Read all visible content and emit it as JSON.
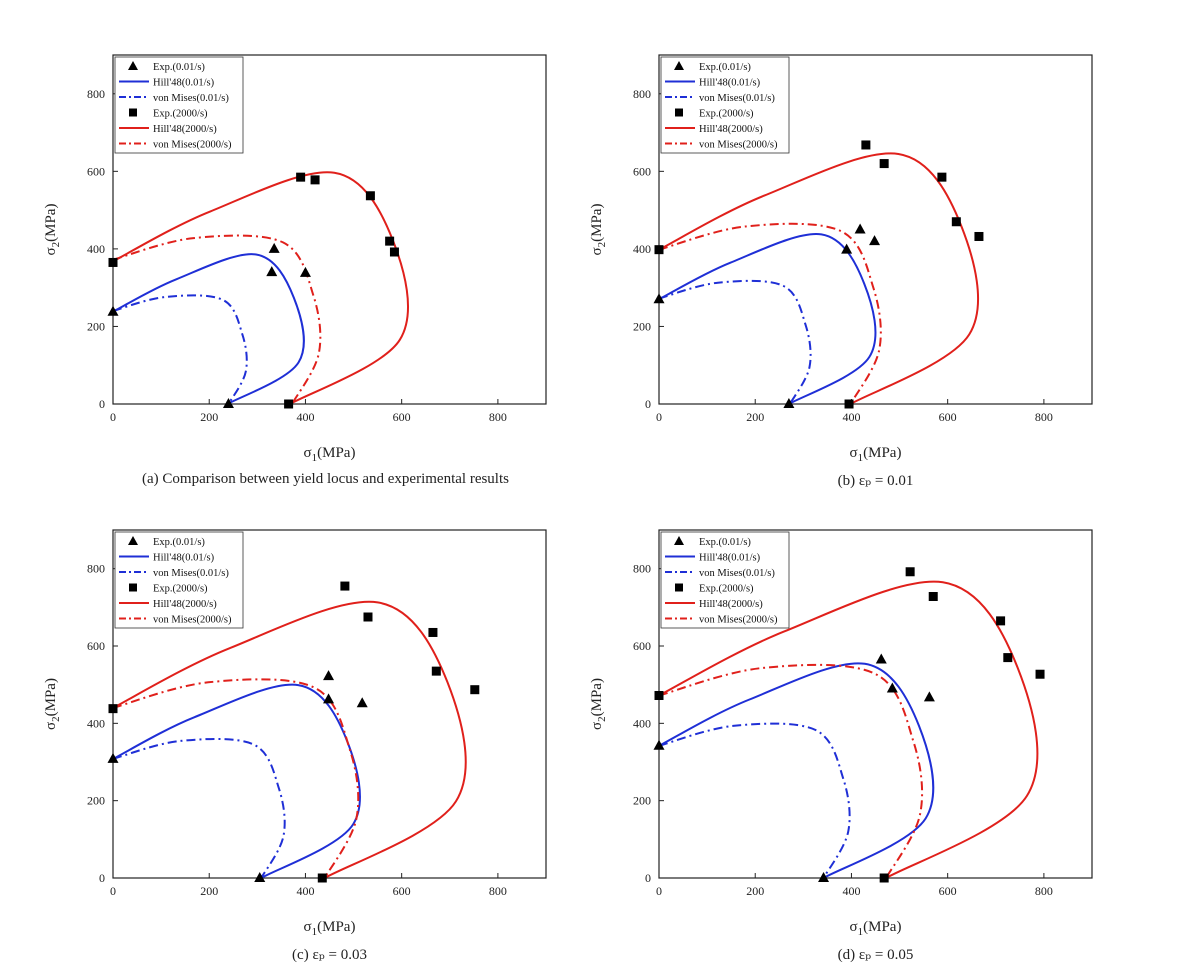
{
  "figure": {
    "legend_entries": [
      {
        "label": "Exp.(0.01/s)",
        "kind": "triangle",
        "color": "#000000"
      },
      {
        "label": "Hill'48(0.01/s)",
        "kind": "solid",
        "color": "#1f2fd6"
      },
      {
        "label": "von Mises(0.01/s)",
        "kind": "dashdot",
        "color": "#1f2fd6"
      },
      {
        "label": "Exp.(2000/s)",
        "kind": "square",
        "color": "#000000"
      },
      {
        "label": "Hill'48(2000/s)",
        "kind": "solid",
        "color": "#e0201b"
      },
      {
        "label": "von Mises(2000/s)",
        "kind": "dashdot",
        "color": "#e0201b"
      }
    ],
    "colors": {
      "blue": "#1f2fd6",
      "red": "#e0201b",
      "marker": "#000000"
    }
  },
  "chart_data": [
    {
      "id": "a",
      "type": "scatter",
      "caption": "(a) Comparison between yield locus and experimental results",
      "xlabel": "σ1(MPa)",
      "ylabel": "σ2(MPa)",
      "xlim": [
        0,
        900
      ],
      "ylim": [
        0,
        900
      ],
      "xticks": [
        0,
        200,
        400,
        600,
        800
      ],
      "yticks": [
        0,
        200,
        400,
        600,
        800
      ],
      "legend_position": "top-left",
      "curves": {
        "hill_low": 238,
        "vm_low": 240,
        "hill_high": 368,
        "vm_high": 372
      },
      "exp_low": [
        [
          0,
          238
        ],
        [
          240,
          0
        ],
        [
          330,
          340
        ],
        [
          335,
          400
        ],
        [
          400,
          338
        ]
      ],
      "exp_high": [
        [
          0,
          365
        ],
        [
          365,
          0
        ],
        [
          390,
          585
        ],
        [
          420,
          578
        ],
        [
          535,
          537
        ],
        [
          575,
          420
        ],
        [
          585,
          392
        ]
      ]
    },
    {
      "id": "b",
      "type": "scatter",
      "caption": "(b) εₚ = 0.01",
      "xlabel": "σ1(MPa)",
      "ylabel": "σ2(MPa)",
      "xlim": [
        0,
        900
      ],
      "ylim": [
        0,
        900
      ],
      "xticks": [
        0,
        200,
        400,
        600,
        800
      ],
      "yticks": [
        0,
        200,
        400,
        600,
        800
      ],
      "legend_position": "top-left",
      "curves": {
        "hill_low": 270,
        "vm_low": 272,
        "hill_high": 398,
        "vm_high": 398
      },
      "exp_low": [
        [
          0,
          270
        ],
        [
          270,
          0
        ],
        [
          390,
          398
        ],
        [
          418,
          450
        ],
        [
          448,
          420
        ]
      ],
      "exp_high": [
        [
          0,
          398
        ],
        [
          395,
          0
        ],
        [
          430,
          668
        ],
        [
          468,
          620
        ],
        [
          588,
          585
        ],
        [
          618,
          470
        ],
        [
          665,
          432
        ]
      ]
    },
    {
      "id": "c",
      "type": "scatter",
      "caption": "(c) εₚ = 0.03",
      "xlabel": "σ1(MPa)",
      "ylabel": "σ2(MPa)",
      "xlim": [
        0,
        900
      ],
      "ylim": [
        0,
        900
      ],
      "xticks": [
        0,
        200,
        400,
        600,
        800
      ],
      "yticks": [
        0,
        200,
        400,
        600,
        800
      ],
      "legend_position": "top-left",
      "curves": {
        "hill_low": 308,
        "vm_low": 308,
        "hill_high": 440,
        "vm_high": 440
      },
      "exp_low": [
        [
          0,
          308
        ],
        [
          305,
          0
        ],
        [
          448,
          462
        ],
        [
          448,
          522
        ],
        [
          518,
          452
        ]
      ],
      "exp_high": [
        [
          0,
          438
        ],
        [
          435,
          0
        ],
        [
          482,
          755
        ],
        [
          530,
          675
        ],
        [
          665,
          635
        ],
        [
          672,
          535
        ],
        [
          752,
          487
        ]
      ]
    },
    {
      "id": "d",
      "type": "scatter",
      "caption": "(d) εₚ = 0.05",
      "xlabel": "σ1(MPa)",
      "ylabel": "σ2(MPa)",
      "xlim": [
        0,
        900
      ],
      "ylim": [
        0,
        900
      ],
      "xticks": [
        0,
        200,
        400,
        600,
        800
      ],
      "yticks": [
        0,
        200,
        400,
        600,
        800
      ],
      "legend_position": "top-left",
      "curves": {
        "hill_low": 342,
        "vm_low": 342,
        "hill_high": 472,
        "vm_high": 472
      },
      "exp_low": [
        [
          0,
          342
        ],
        [
          342,
          0
        ],
        [
          462,
          565
        ],
        [
          485,
          490
        ],
        [
          562,
          467
        ]
      ],
      "exp_high": [
        [
          0,
          472
        ],
        [
          468,
          0
        ],
        [
          522,
          792
        ],
        [
          570,
          728
        ],
        [
          710,
          665
        ],
        [
          725,
          570
        ],
        [
          792,
          527
        ]
      ]
    }
  ]
}
